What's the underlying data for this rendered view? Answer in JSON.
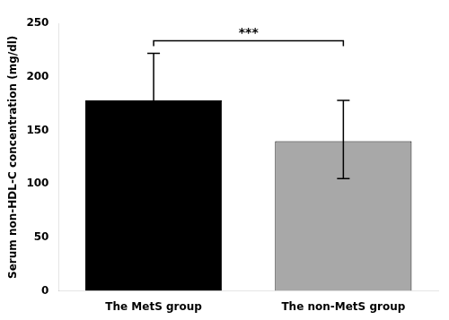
{
  "chart_data": {
    "type": "bar",
    "categories": [
      "The MetS group",
      "The non-MetS group"
    ],
    "values": [
      178,
      140
    ],
    "errors_upper": [
      44,
      38
    ],
    "errors_lower": [
      43,
      35
    ],
    "colors": [
      "#000000",
      "#a8a8a8"
    ],
    "ylabel": "Serum non-HDL-C concentration (mg/dl)",
    "ylim": [
      0,
      250
    ],
    "yticks": [
      0,
      50,
      100,
      150,
      200,
      250
    ],
    "annotation": "***",
    "grid": false
  }
}
